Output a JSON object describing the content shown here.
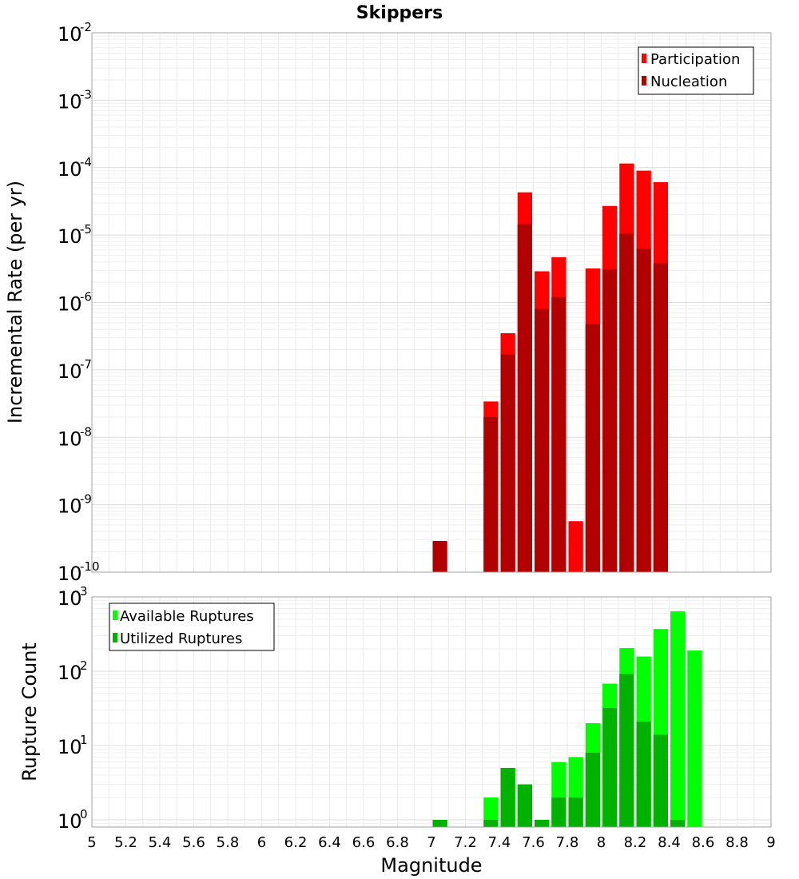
{
  "chart_data": [
    {
      "type": "bar",
      "title": "Skippers",
      "xlabel": "",
      "ylabel": "Incremental Rate (per yr)",
      "xlim": [
        5,
        9
      ],
      "ylim": [
        1e-10,
        0.01
      ],
      "y_scale": "log",
      "grid": true,
      "legend_position": "top-right",
      "y_ticks": [
        {
          "base": "10",
          "exp": "-10",
          "value": 1e-10
        },
        {
          "base": "10",
          "exp": "-9",
          "value": 1e-09
        },
        {
          "base": "10",
          "exp": "-8",
          "value": 1e-08
        },
        {
          "base": "10",
          "exp": "-7",
          "value": 1e-07
        },
        {
          "base": "10",
          "exp": "-6",
          "value": 1e-06
        },
        {
          "base": "10",
          "exp": "-5",
          "value": 1e-05
        },
        {
          "base": "10",
          "exp": "-4",
          "value": 0.0001
        },
        {
          "base": "10",
          "exp": "-3",
          "value": 0.001
        },
        {
          "base": "10",
          "exp": "-2",
          "value": 0.01
        }
      ],
      "series": [
        {
          "name": "Participation",
          "color": "#ff0000",
          "x": [
            7.35,
            7.45,
            7.55,
            7.65,
            7.75,
            7.85,
            7.95,
            8.05,
            8.15,
            8.25,
            8.35
          ],
          "values": [
            3.4e-08,
            3.5e-07,
            4.3e-05,
            2.9e-06,
            4.7e-06,
            5.7e-10,
            3.2e-06,
            2.7e-05,
            0.000115,
            9e-05,
            6.1e-05
          ]
        },
        {
          "name": "Nucleation",
          "color": "#b20000",
          "x": [
            7.05,
            7.35,
            7.45,
            7.55,
            7.65,
            7.75,
            7.95,
            8.05,
            8.15,
            8.25,
            8.35
          ],
          "values": [
            2.9e-10,
            2e-08,
            1.7e-07,
            1.45e-05,
            8e-07,
            1.2e-06,
            4.8e-07,
            3.1e-06,
            1.05e-05,
            6.3e-06,
            3.8e-06
          ]
        }
      ]
    },
    {
      "type": "bar",
      "title": "",
      "xlabel": "Magnitude",
      "ylabel": "Rupture Count",
      "xlim": [
        5,
        9
      ],
      "ylim": [
        0.8,
        1000
      ],
      "y_scale": "log",
      "grid": true,
      "legend_position": "top-left",
      "x_ticks": [
        "5",
        "5.2",
        "5.4",
        "5.6",
        "5.8",
        "6",
        "6.2",
        "6.4",
        "6.6",
        "6.8",
        "7",
        "7.2",
        "7.4",
        "7.6",
        "7.8",
        "8",
        "8.2",
        "8.4",
        "8.6",
        "8.8",
        "9"
      ],
      "y_ticks": [
        {
          "base": "10",
          "exp": "0",
          "value": 1
        },
        {
          "base": "10",
          "exp": "1",
          "value": 10
        },
        {
          "base": "10",
          "exp": "2",
          "value": 100
        },
        {
          "base": "10",
          "exp": "3",
          "value": 1000
        }
      ],
      "series": [
        {
          "name": "Available Ruptures",
          "color": "#00ff00",
          "x": [
            7.05,
            7.35,
            7.45,
            7.55,
            7.65,
            7.75,
            7.85,
            7.95,
            8.05,
            8.15,
            8.25,
            8.35,
            8.45,
            8.55
          ],
          "values": [
            1,
            2,
            5,
            3,
            1,
            6,
            7,
            20,
            68,
            205,
            158,
            370,
            640,
            190
          ]
        },
        {
          "name": "Utilized Ruptures",
          "color": "#00b200",
          "x": [
            7.05,
            7.35,
            7.45,
            7.55,
            7.65,
            7.75,
            7.85,
            7.95,
            8.05,
            8.15,
            8.25,
            8.35,
            8.45
          ],
          "values": [
            1,
            1,
            5,
            3,
            1,
            2,
            2,
            8,
            32,
            92,
            21,
            14,
            1
          ]
        }
      ]
    }
  ]
}
